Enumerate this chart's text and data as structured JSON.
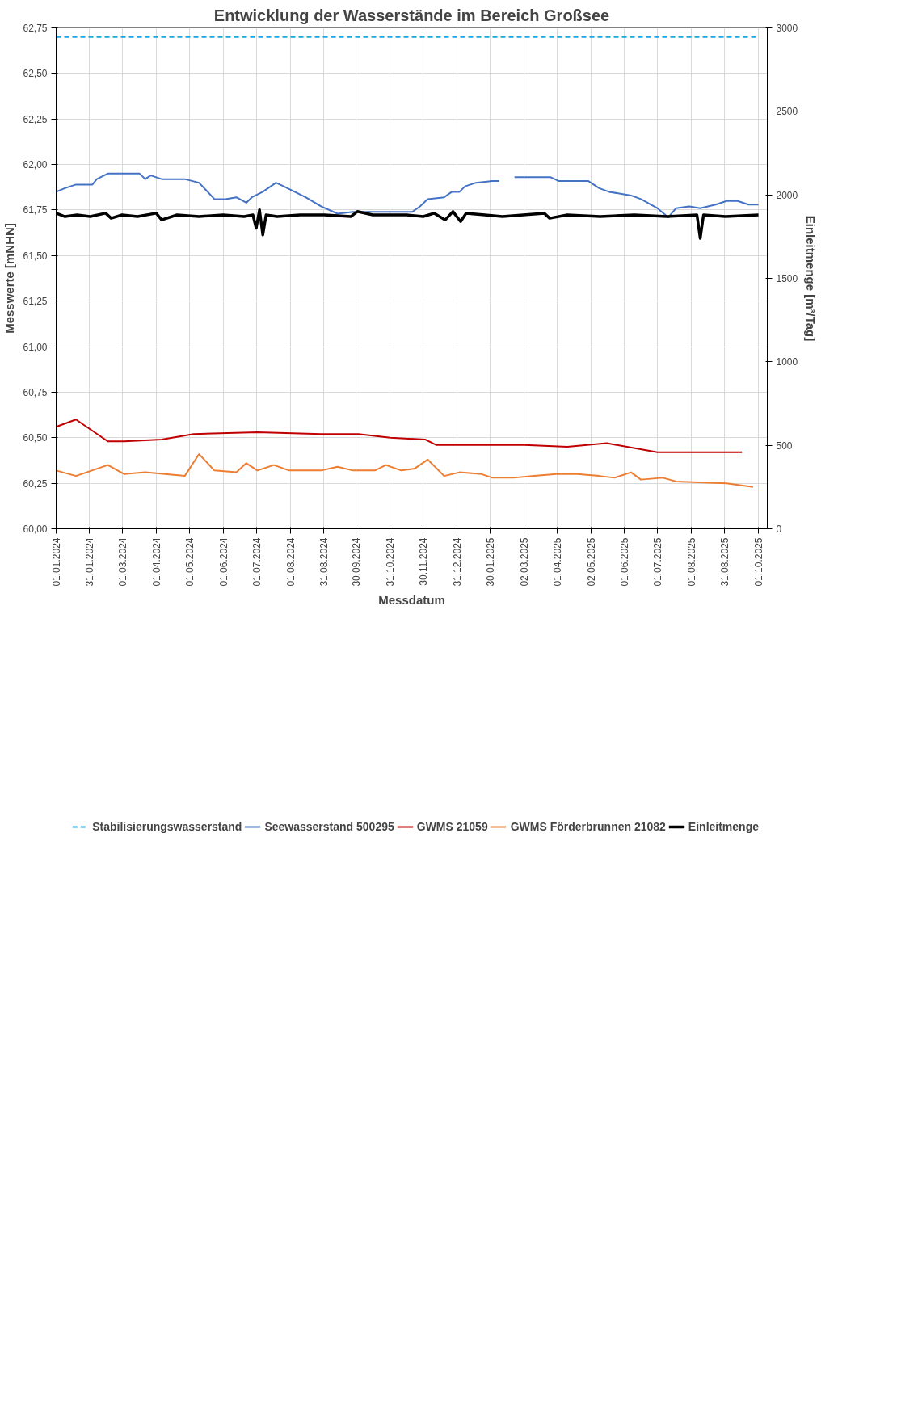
{
  "chart_data": {
    "type": "line",
    "title": "Entwicklung der Wasserstände im Bereich Großsee",
    "xlabel": "Messdatum",
    "ylabel": "Messwerte [mNHN]",
    "y2label": "Einleitmenge [m³/Tag]",
    "xlim": [
      "2024-01-01",
      "2025-10-09"
    ],
    "xticks": [
      {
        "value": "2024-01-01",
        "label": "01.01.2024"
      },
      {
        "value": "2024-01-31",
        "label": "31.01.2024"
      },
      {
        "value": "2024-03-01",
        "label": "01.03.2024"
      },
      {
        "value": "2024-04-01",
        "label": "01.04.2024"
      },
      {
        "value": "2024-05-01",
        "label": "01.05.2024"
      },
      {
        "value": "2024-06-01",
        "label": "01.06.2024"
      },
      {
        "value": "2024-07-01",
        "label": "01.07.2024"
      },
      {
        "value": "2024-08-01",
        "label": "01.08.2024"
      },
      {
        "value": "2024-08-31",
        "label": "31.08.2024"
      },
      {
        "value": "2024-09-30",
        "label": "30.09.2024"
      },
      {
        "value": "2024-10-31",
        "label": "31.10.2024"
      },
      {
        "value": "2024-11-30",
        "label": "30.11.2024"
      },
      {
        "value": "2024-12-31",
        "label": "31.12.2024"
      },
      {
        "value": "2025-01-30",
        "label": "30.01.2025"
      },
      {
        "value": "2025-03-02",
        "label": "02.03.2025"
      },
      {
        "value": "2025-04-01",
        "label": "01.04.2025"
      },
      {
        "value": "2025-05-02",
        "label": "02.05.2025"
      },
      {
        "value": "2025-06-01",
        "label": "01.06.2025"
      },
      {
        "value": "2025-07-01",
        "label": "01.07.2025"
      },
      {
        "value": "2025-08-01",
        "label": "01.08.2025"
      },
      {
        "value": "2025-08-31",
        "label": "31.08.2025"
      },
      {
        "value": "2025-10-01",
        "label": "01.10.2025"
      }
    ],
    "ylim": [
      60.0,
      62.75
    ],
    "yticks": [
      {
        "value": 60.0,
        "label": "60,00"
      },
      {
        "value": 60.25,
        "label": "60,25"
      },
      {
        "value": 60.5,
        "label": "60,50"
      },
      {
        "value": 60.75,
        "label": "60,75"
      },
      {
        "value": 61.0,
        "label": "61,00"
      },
      {
        "value": 61.25,
        "label": "61,25"
      },
      {
        "value": 61.5,
        "label": "61,50"
      },
      {
        "value": 61.75,
        "label": "61,75"
      },
      {
        "value": 62.0,
        "label": "62,00"
      },
      {
        "value": 62.25,
        "label": "62,25"
      },
      {
        "value": 62.5,
        "label": "62,50"
      },
      {
        "value": 62.75,
        "label": "62,75"
      }
    ],
    "y2lim": [
      0,
      3000
    ],
    "y2ticks": [
      0,
      500,
      1000,
      1500,
      2000,
      2500,
      3000
    ],
    "grid": true,
    "legend": "bottom",
    "marker": "none",
    "series": [
      {
        "name": "Stabilisierungswasserstand",
        "color": "#1aa7e0",
        "line_style": "dashed",
        "x": [
          "2024-01-01",
          "2025-10-01"
        ],
        "values": [
          62.7,
          62.7
        ]
      },
      {
        "name": "Seewasserstand 500295",
        "color": "#4472c4",
        "x": [
          "2024-01-01",
          "2024-01-09",
          "2024-01-19",
          "2024-02-03",
          "2024-02-07",
          "2024-02-17",
          "2024-03-17",
          "2024-03-22",
          "2024-03-27",
          "2024-04-06",
          "2024-04-27",
          "2024-05-10",
          "2024-05-24",
          "2024-06-03",
          "2024-06-13",
          "2024-06-22",
          "2024-06-27",
          "2024-07-07",
          "2024-07-19",
          "2024-07-26",
          "2024-08-05",
          "2024-08-15",
          "2024-08-29",
          "2024-09-13",
          "2024-09-27",
          "2024-11-20",
          "2024-11-27",
          "2024-12-04",
          "2024-12-19",
          "2024-12-26",
          "2025-01-02",
          "2025-01-07",
          "2025-01-17",
          "2025-02-01",
          "2025-02-07",
          "2025-02-14",
          "2025-02-21",
          "2025-03-26",
          "2025-04-02",
          "2025-04-10",
          "2025-04-29",
          "2025-05-09",
          "2025-05-18",
          "2025-06-07",
          "2025-06-16",
          "2025-07-01",
          "2025-07-11",
          "2025-07-18",
          "2025-07-30",
          "2025-08-09",
          "2025-08-23",
          "2025-09-02",
          "2025-09-12",
          "2025-09-22",
          "2025-10-01"
        ],
        "values": [
          61.85,
          61.87,
          61.89,
          61.89,
          61.92,
          61.95,
          61.95,
          61.92,
          61.94,
          61.92,
          61.92,
          61.9,
          61.81,
          61.81,
          61.82,
          61.79,
          61.82,
          61.85,
          61.9,
          61.88,
          61.85,
          61.82,
          61.77,
          61.73,
          61.74,
          61.74,
          61.77,
          61.81,
          61.82,
          61.85,
          61.85,
          61.88,
          61.9,
          61.91,
          61.91,
          null,
          61.93,
          61.93,
          61.91,
          61.91,
          61.91,
          61.87,
          61.85,
          61.83,
          61.81,
          61.76,
          61.71,
          61.76,
          61.77,
          61.76,
          61.78,
          61.8,
          61.8,
          61.78,
          61.78
        ]
      },
      {
        "name": "GWMS 21059",
        "color": "#c00000",
        "x": [
          "2024-01-01",
          "2024-01-19",
          "2024-02-17",
          "2024-03-03",
          "2024-04-06",
          "2024-05-05",
          "2024-07-02",
          "2024-08-29",
          "2024-10-02",
          "2024-10-31",
          "2024-12-02",
          "2024-12-12",
          "2025-02-01",
          "2025-03-02",
          "2025-04-10",
          "2025-05-16",
          "2025-07-01",
          "2025-08-02",
          "2025-09-16"
        ],
        "values": [
          60.56,
          60.6,
          60.48,
          60.48,
          60.49,
          60.52,
          60.53,
          60.52,
          60.52,
          60.5,
          60.49,
          60.46,
          60.46,
          60.46,
          60.45,
          60.47,
          60.42,
          60.42,
          60.42
        ]
      },
      {
        "name": "GWMS Förderbrunnen 21082",
        "color": "#ed7d31",
        "x": [
          "2024-01-01",
          "2024-01-19",
          "2024-02-17",
          "2024-03-03",
          "2024-03-22",
          "2024-04-27",
          "2024-05-10",
          "2024-05-24",
          "2024-06-13",
          "2024-06-22",
          "2024-07-02",
          "2024-07-17",
          "2024-07-31",
          "2024-08-29",
          "2024-09-13",
          "2024-09-27",
          "2024-10-17",
          "2024-10-27",
          "2024-11-10",
          "2024-11-22",
          "2024-12-04",
          "2024-12-19",
          "2025-01-02",
          "2025-01-22",
          "2025-02-01",
          "2025-02-20",
          "2025-03-11",
          "2025-03-31",
          "2025-04-19",
          "2025-05-09",
          "2025-05-23",
          "2025-06-07",
          "2025-06-16",
          "2025-07-06",
          "2025-07-18",
          "2025-09-02",
          "2025-09-26"
        ],
        "values": [
          60.32,
          60.29,
          60.35,
          60.3,
          60.31,
          60.29,
          60.41,
          60.32,
          60.31,
          60.36,
          60.32,
          60.35,
          60.32,
          60.32,
          60.34,
          60.32,
          60.32,
          60.35,
          60.32,
          60.33,
          60.38,
          60.29,
          60.31,
          60.3,
          60.28,
          60.28,
          60.29,
          60.3,
          60.3,
          60.29,
          60.28,
          60.31,
          60.27,
          60.28,
          60.26,
          60.25,
          60.23
        ]
      },
      {
        "name": "Einleitmenge",
        "color": "#000000",
        "axis": "y2",
        "x": [
          "2024-01-01",
          "2024-01-09",
          "2024-01-20",
          "2024-02-01",
          "2024-02-15",
          "2024-02-20",
          "2024-03-01",
          "2024-03-15",
          "2024-04-01",
          "2024-04-06",
          "2024-04-20",
          "2024-05-10",
          "2024-06-01",
          "2024-06-20",
          "2024-06-28",
          "2024-07-01",
          "2024-07-04",
          "2024-07-07",
          "2024-07-10",
          "2024-07-20",
          "2024-08-10",
          "2024-09-01",
          "2024-09-25",
          "2024-10-01",
          "2024-10-15",
          "2024-11-15",
          "2024-11-30",
          "2024-12-10",
          "2024-12-20",
          "2024-12-27",
          "2025-01-03",
          "2025-01-08",
          "2025-01-25",
          "2025-02-10",
          "2025-03-01",
          "2025-03-20",
          "2025-03-25",
          "2025-04-10",
          "2025-05-10",
          "2025-06-10",
          "2025-07-10",
          "2025-08-06",
          "2025-08-09",
          "2025-08-12",
          "2025-09-01",
          "2025-10-01"
        ],
        "values": [
          1890,
          1870,
          1880,
          1870,
          1890,
          1860,
          1880,
          1870,
          1890,
          1850,
          1880,
          1870,
          1880,
          1870,
          1880,
          1800,
          1910,
          1760,
          1880,
          1870,
          1880,
          1880,
          1870,
          1900,
          1880,
          1880,
          1870,
          1890,
          1850,
          1900,
          1840,
          1890,
          1880,
          1870,
          1880,
          1890,
          1860,
          1880,
          1870,
          1880,
          1870,
          1880,
          1740,
          1880,
          1870,
          1880
        ]
      }
    ]
  }
}
